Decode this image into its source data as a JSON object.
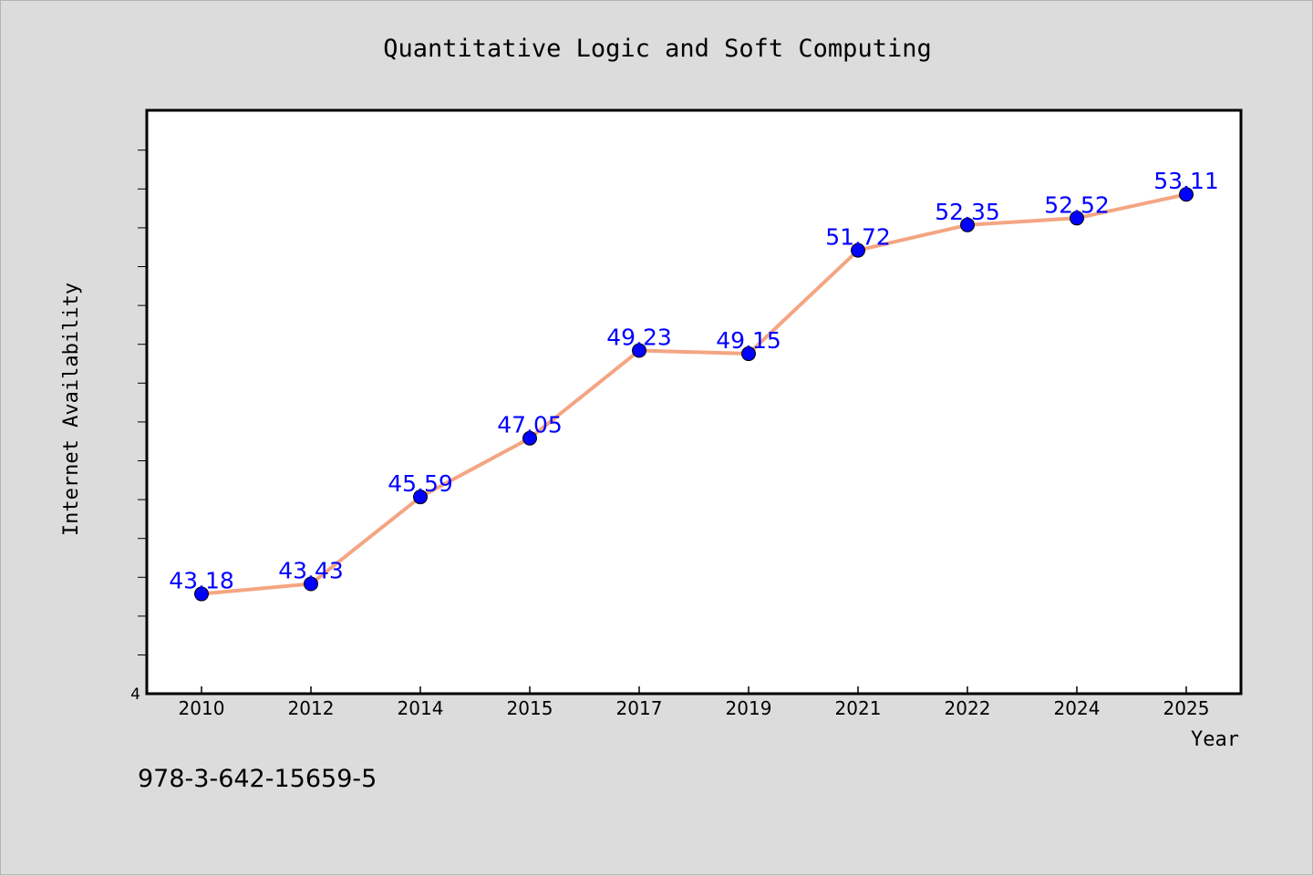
{
  "chart_data": {
    "type": "line",
    "title": "Quantitative Logic and Soft Computing",
    "xlabel": "Year",
    "ylabel": "Internet Availability",
    "categories": [
      "2010",
      "2012",
      "2014",
      "2015",
      "2017",
      "2019",
      "2021",
      "2022",
      "2024",
      "2025"
    ],
    "series": [
      {
        "values": [
          43.18,
          43.43,
          45.59,
          47.05,
          49.23,
          49.15,
          51.72,
          52.35,
          52.52,
          53.11
        ],
        "labels": [
          "43.18",
          "43.43",
          "45.59",
          "47.05",
          "49.23",
          "49.15",
          "51.72",
          "52.35",
          "52.52",
          "53.11"
        ]
      }
    ],
    "ylim": [
      40.7,
      55.2
    ],
    "y_tick_visible_label": "4",
    "grid": false,
    "legend": "none",
    "colors": {
      "line": "#f4a582",
      "marker": "#0000ff",
      "data_label": "#0000ff",
      "background": "#dcdcdc",
      "plot_area": "#ffffff"
    }
  },
  "footer": {
    "isbn": "978-3-642-15659-5"
  }
}
